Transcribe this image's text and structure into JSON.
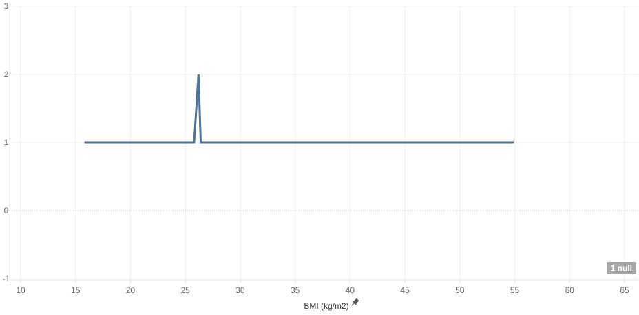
{
  "null_indicator": "1 null",
  "chart_data": {
    "type": "line",
    "xlabel": "BMI (kg/m2)",
    "ylabel": "",
    "xlim": [
      9,
      66
    ],
    "ylim": [
      -1.1,
      3.05
    ],
    "x_ticks": [
      10,
      15,
      20,
      25,
      30,
      35,
      40,
      45,
      50,
      55,
      60,
      65
    ],
    "y_ticks": [
      -1,
      0,
      1,
      2,
      3
    ],
    "grid": true,
    "zero_line": "dotted",
    "series": [
      {
        "color": "#4e7396",
        "x": [
          15.8,
          25.8,
          26.2,
          26.4,
          54.9
        ],
        "y": [
          1,
          1,
          2,
          1,
          1
        ]
      }
    ],
    "pin_icon": "pin-icon"
  }
}
